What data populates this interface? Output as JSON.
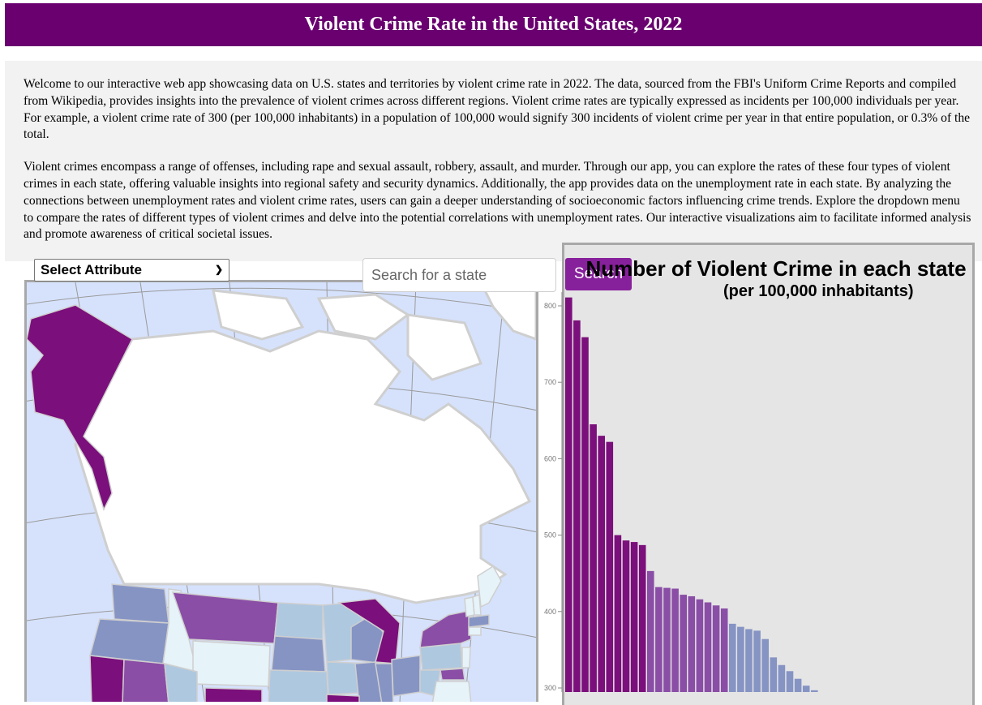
{
  "header": {
    "title": "Violent Crime Rate in the United States, 2022"
  },
  "intro": {
    "paragraph1": "Welcome to our interactive web app showcasing data on U.S. states and territories by violent crime rate in 2022. The data, sourced from the FBI's Uniform Crime Reports and compiled from Wikipedia, provides insights into the prevalence of violent crimes across different regions. Violent crime rates are typically expressed as incidents per 100,000 individuals per year. For example, a violent crime rate of 300 (per 100,000 inhabitants) in a population of 100,000 would signify 300 incidents of violent crime per year in that entire population, or 0.3% of the total.",
    "paragraph2": "Violent crimes encompass a range of offenses, including rape and sexual assault, robbery, assault, and murder. Through our app, you can explore the rates of these four types of violent crimes in each state, offering valuable insights into regional safety and security dynamics. Additionally, the app provides data on the unemployment rate in each state. By analyzing the connections between unemployment rates and violent crime rates, users can gain a deeper understanding of socioeconomic factors influencing crime trends. Explore the dropdown menu to compare the rates of different types of violent crimes and delve into the potential correlations with unemployment rates. Our interactive visualizations aim to facilitate informed analysis and promote awareness of critical societal issues."
  },
  "controls": {
    "attribute_select": "Select Attribute",
    "search_placeholder": "Search for a state",
    "search_button": "Search"
  },
  "colors": {
    "header_bg": "#6a0070",
    "tier1": "#7b0f7b",
    "tier2": "#8a4ea6",
    "tier3": "#8694c4",
    "tier4": "#aec8e0",
    "tier5": "#e6f3f8",
    "ocean": "#d6e2fc"
  },
  "chart_data": {
    "type": "bar",
    "title": "Number of Violent Crime in each state",
    "subtitle": "(per 100,000 inhabitants)",
    "ylim": [
      290,
      820
    ],
    "yticks": [
      300,
      400,
      500,
      600,
      700,
      800
    ],
    "values": [
      811,
      781,
      759,
      645,
      630,
      622,
      500,
      493,
      491,
      487,
      453,
      432,
      431,
      430,
      422,
      420,
      416,
      412,
      408,
      404,
      384,
      380,
      377,
      375,
      364,
      340,
      330,
      322,
      312,
      303,
      297
    ],
    "colors": [
      "#7b0f7b",
      "#7b0f7b",
      "#7b0f7b",
      "#7b0f7b",
      "#7b0f7b",
      "#7b0f7b",
      "#7b0f7b",
      "#7b0f7b",
      "#7b0f7b",
      "#7b0f7b",
      "#8a4ea6",
      "#8a4ea6",
      "#8a4ea6",
      "#8a4ea6",
      "#8a4ea6",
      "#8a4ea6",
      "#8a4ea6",
      "#8a4ea6",
      "#8a4ea6",
      "#8a4ea6",
      "#8694c4",
      "#8694c4",
      "#8694c4",
      "#8694c4",
      "#8694c4",
      "#8694c4",
      "#8694c4",
      "#8694c4",
      "#8694c4",
      "#8694c4",
      "#8694c4"
    ]
  }
}
